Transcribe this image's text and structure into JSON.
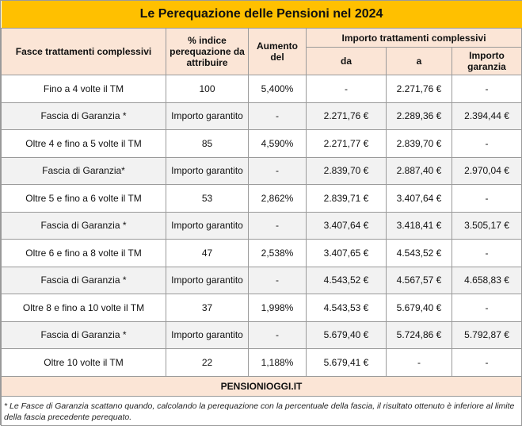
{
  "title": "Le Perequazione delle Pensioni nel 2024",
  "headers": {
    "fasce": "Fasce trattamenti complessivi",
    "indice": "% indice perequazione da attribuire",
    "aumento": "Aumento del",
    "importo": "Importo trattamenti complessivi",
    "da": "da",
    "a": "a",
    "garanzia": "Importo garanzia"
  },
  "rows": [
    {
      "fascia": "Fino a 4 volte il TM",
      "indice": "100",
      "aumento": "5,400%",
      "da": "-",
      "a": "2.271,76 €",
      "garanzia": "-"
    },
    {
      "fascia": "Fascia di Garanzia *",
      "indice": "Importo garantito",
      "aumento": "-",
      "da": "2.271,76 €",
      "a": "2.289,36 €",
      "garanzia": "2.394,44 €"
    },
    {
      "fascia": "Oltre 4 e fino a 5 volte il TM",
      "indice": "85",
      "aumento": "4,590%",
      "da": "2.271,77 €",
      "a": "2.839,70 €",
      "garanzia": "-"
    },
    {
      "fascia": "Fascia di Garanzia*",
      "indice": "Importo garantito",
      "aumento": "-",
      "da": "2.839,70 €",
      "a": "2.887,40 €",
      "garanzia": "2.970,04 €"
    },
    {
      "fascia": "Oltre 5 e fino a 6 volte il TM",
      "indice": "53",
      "aumento": "2,862%",
      "da": "2.839,71 €",
      "a": "3.407,64 €",
      "garanzia": "-"
    },
    {
      "fascia": "Fascia di Garanzia *",
      "indice": "Importo garantito",
      "aumento": "-",
      "da": "3.407,64 €",
      "a": "3.418,41 €",
      "garanzia": "3.505,17 €"
    },
    {
      "fascia": "Oltre 6 e fino a 8 volte il TM",
      "indice": "47",
      "aumento": "2,538%",
      "da": "3.407,65 €",
      "a": "4.543,52 €",
      "garanzia": "-"
    },
    {
      "fascia": "Fascia di Garanzia *",
      "indice": "Importo garantito",
      "aumento": "-",
      "da": "4.543,52 €",
      "a": "4.567,57 €",
      "garanzia": "4.658,83 €"
    },
    {
      "fascia": "Oltre 8 e fino a 10 volte il TM",
      "indice": "37",
      "aumento": "1,998%",
      "da": "4.543,53 €",
      "a": "5.679,40 €",
      "garanzia": "-"
    },
    {
      "fascia": "Fascia di Garanzia *",
      "indice": "Importo garantito",
      "aumento": "-",
      "da": "5.679,40 €",
      "a": "5.724,86 €",
      "garanzia": "5.792,87 €"
    },
    {
      "fascia": "Oltre 10 volte il TM",
      "indice": "22",
      "aumento": "1,188%",
      "da": "5.679,41 €",
      "a": "-",
      "garanzia": "-"
    }
  ],
  "site": "PENSIONIOGGI.IT",
  "note": "* Le Fasce di Garanzia scattano quando, calcolando la perequazione con la percentuale della fascia, il risultato ottenuto è inferiore al limite della fascia precedente perequato."
}
